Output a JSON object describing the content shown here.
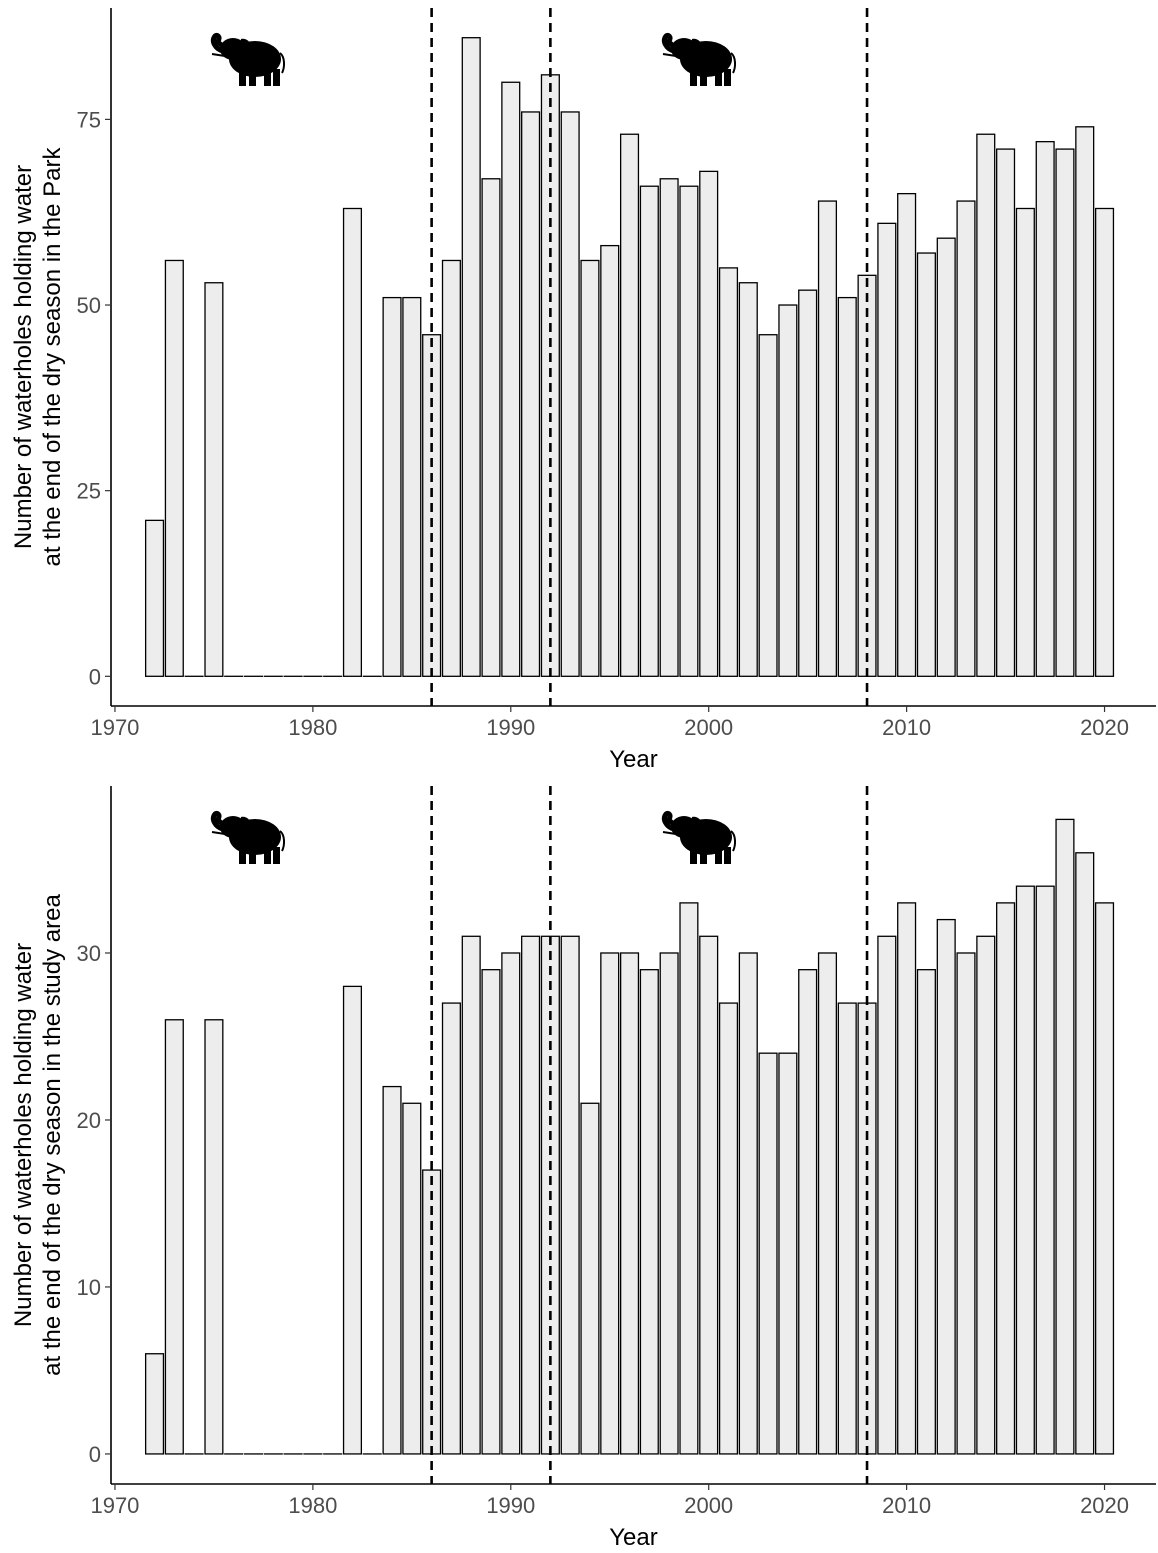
{
  "chart_data": [
    {
      "type": "bar",
      "xlabel": "Year",
      "ylabel_lines": [
        "Number of waterholes holding water",
        "at the end of the dry season in the Park"
      ],
      "xlim": [
        1969.8,
        2022.6
      ],
      "ylim": [
        -4,
        90
      ],
      "xticks": [
        1970,
        1980,
        1990,
        2000,
        2010,
        2020
      ],
      "yticks": [
        0,
        25,
        50,
        75
      ],
      "vlines": [
        1986,
        1992,
        2008
      ],
      "elephant_icons": [
        "elephant-icon",
        "elephant-icon"
      ],
      "bar_fill": "#ededed",
      "bar_stroke": "#000000",
      "years": [
        1972,
        1973,
        1974,
        1975,
        1976,
        1977,
        1978,
        1979,
        1980,
        1981,
        1982,
        1983,
        1984,
        1985,
        1986,
        1987,
        1988,
        1989,
        1990,
        1991,
        1992,
        1993,
        1994,
        1995,
        1996,
        1997,
        1998,
        1999,
        2000,
        2001,
        2002,
        2003,
        2004,
        2005,
        2006,
        2007,
        2008,
        2009,
        2010,
        2011,
        2012,
        2013,
        2014,
        2015,
        2016,
        2017,
        2018,
        2019,
        2020
      ],
      "values": [
        21,
        56,
        0,
        53,
        0,
        0,
        0,
        0,
        0,
        0,
        63,
        0,
        51,
        51,
        46,
        56,
        86,
        67,
        80,
        76,
        81,
        76,
        56,
        58,
        73,
        66,
        67,
        66,
        68,
        55,
        53,
        46,
        50,
        52,
        64,
        51,
        54,
        61,
        65,
        57,
        59,
        64,
        73,
        71,
        63,
        72,
        71,
        74,
        63
      ]
    },
    {
      "type": "bar",
      "xlabel": "Year",
      "ylabel_lines": [
        "Number of waterholes holding water",
        "at the end of the dry season in the study area"
      ],
      "xlim": [
        1969.8,
        2022.6
      ],
      "ylim": [
        -1.8,
        40
      ],
      "xticks": [
        1970,
        1980,
        1990,
        2000,
        2010,
        2020
      ],
      "yticks": [
        0,
        10,
        20,
        30
      ],
      "vlines": [
        1986,
        1992,
        2008
      ],
      "elephant_icons": [
        "elephant-icon",
        "elephant-icon"
      ],
      "bar_fill": "#ededed",
      "bar_stroke": "#000000",
      "years": [
        1972,
        1973,
        1974,
        1975,
        1976,
        1977,
        1978,
        1979,
        1980,
        1981,
        1982,
        1983,
        1984,
        1985,
        1986,
        1987,
        1988,
        1989,
        1990,
        1991,
        1992,
        1993,
        1994,
        1995,
        1996,
        1997,
        1998,
        1999,
        2000,
        2001,
        2002,
        2003,
        2004,
        2005,
        2006,
        2007,
        2008,
        2009,
        2010,
        2011,
        2012,
        2013,
        2014,
        2015,
        2016,
        2017,
        2018,
        2019,
        2020
      ],
      "values": [
        6,
        26,
        0,
        26,
        0,
        0,
        0,
        0,
        0,
        0,
        28,
        0,
        22,
        21,
        17,
        27,
        31,
        29,
        30,
        31,
        31,
        31,
        21,
        30,
        30,
        29,
        30,
        33,
        31,
        27,
        30,
        24,
        24,
        29,
        30,
        27,
        27,
        31,
        33,
        29,
        32,
        30,
        31,
        33,
        34,
        34,
        38,
        36,
        33
      ]
    }
  ]
}
